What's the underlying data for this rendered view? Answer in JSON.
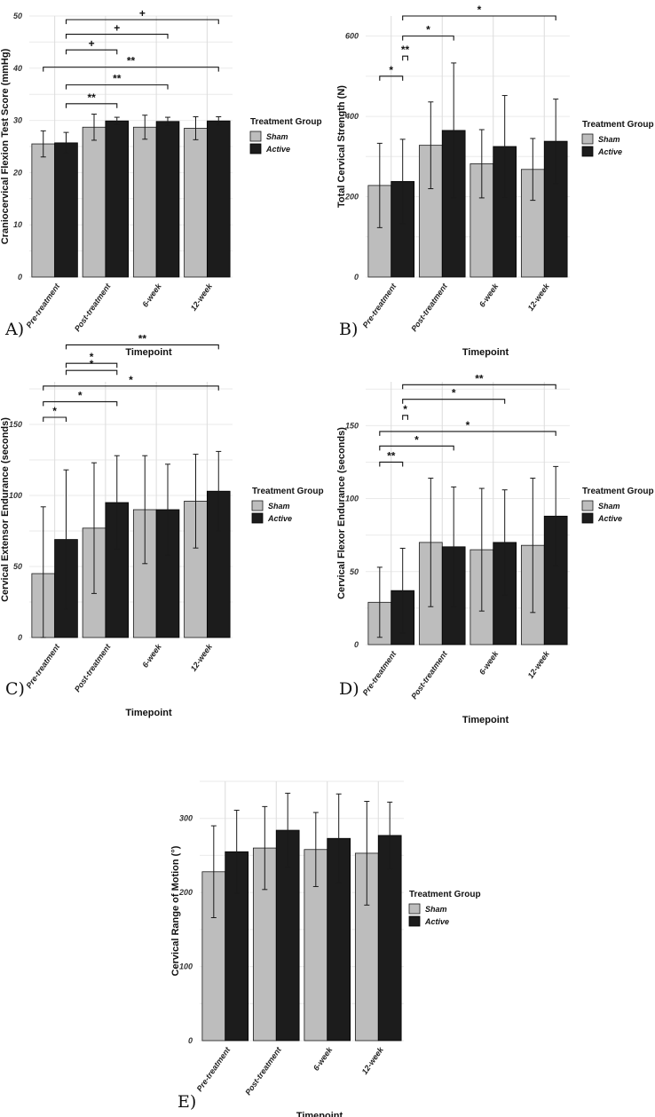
{
  "chart_data": [
    {
      "id": "A",
      "type": "bar",
      "panel_label": "A)",
      "ylabel": "Craniocervical Flexion Test Score (mmHg)",
      "xlabel": "Timepoint",
      "categories": [
        "Pre-treatment",
        "Post-treatment",
        "6-week",
        "12-week"
      ],
      "ylim": [
        0,
        50
      ],
      "yticks": [
        0,
        10,
        20,
        30,
        40,
        50
      ],
      "legend": {
        "title": "Treatment Group",
        "items": [
          "Sham",
          "Active"
        ],
        "position": "right"
      },
      "series": [
        {
          "name": "Sham",
          "values": [
            25.5,
            28.7,
            28.7,
            28.5
          ],
          "error": [
            2.5,
            2.5,
            2.3,
            2.2
          ]
        },
        {
          "name": "Active",
          "values": [
            25.7,
            29.9,
            29.8,
            29.9
          ],
          "error": [
            2.0,
            0.7,
            0.8,
            0.8
          ]
        }
      ],
      "significance": [
        {
          "from": 0,
          "to": 1,
          "label": "**",
          "y": 33.2
        },
        {
          "from": 0,
          "to": 2,
          "label": "**",
          "y": 36.8
        },
        {
          "from": -1,
          "to": 3,
          "label": "**",
          "y": 40.2
        },
        {
          "from": 0,
          "to": 1,
          "label": "+",
          "y": 43.5
        },
        {
          "from": 0,
          "to": 2,
          "label": "+",
          "y": 46.5
        },
        {
          "from": 0,
          "to": 3,
          "label": "+",
          "y": 49.3
        }
      ]
    },
    {
      "id": "B",
      "type": "bar",
      "panel_label": "B)",
      "ylabel": "Total Cervical Strength (N)",
      "xlabel": "Timepoint",
      "categories": [
        "Pre-treatment",
        "Post-treatment",
        "6-week",
        "12-week"
      ],
      "ylim": [
        0,
        650
      ],
      "yticks": [
        0,
        200,
        400,
        600
      ],
      "legend": {
        "title": "Treatment Group",
        "items": [
          "Sham",
          "Active"
        ],
        "position": "right"
      },
      "series": [
        {
          "name": "Sham",
          "values": [
            228,
            328,
            282,
            268
          ],
          "error": [
            105,
            108,
            85,
            77
          ]
        },
        {
          "name": "Active",
          "values": [
            238,
            365,
            325,
            338
          ],
          "error": [
            105,
            168,
            127,
            105
          ]
        }
      ],
      "significance": [
        {
          "from": -1,
          "to": 0,
          "label": "*",
          "y": 500
        },
        {
          "from": 0,
          "to": 0,
          "label": "**",
          "y": 550
        },
        {
          "from": 0,
          "to": 1,
          "label": "*",
          "y": 600
        },
        {
          "from": 0,
          "to": 3,
          "label": "*",
          "y": 650
        }
      ]
    },
    {
      "id": "C",
      "type": "bar",
      "panel_label": "C)",
      "ylabel": "Cervical Extensor Endurance (seconds)",
      "xlabel": "Timepoint",
      "categories": [
        "Pre-treatment",
        "Post-treatment",
        "6-week",
        "12-week"
      ],
      "ylim": [
        0,
        180
      ],
      "yticks": [
        0,
        50,
        100,
        150
      ],
      "legend": {
        "title": "Treatment Group",
        "items": [
          "Sham",
          "Active"
        ],
        "position": "right"
      },
      "series": [
        {
          "name": "Sham",
          "values": [
            45,
            77,
            90,
            96
          ],
          "error": [
            47,
            46,
            38,
            33
          ]
        },
        {
          "name": "Active",
          "values": [
            69,
            95,
            90,
            103
          ],
          "error": [
            49,
            33,
            32,
            28
          ]
        }
      ],
      "significance": [
        {
          "from": -1,
          "to": 0,
          "label": "*",
          "y": 155
        },
        {
          "from": -1,
          "to": 1,
          "label": "*",
          "y": 166
        },
        {
          "from": -1,
          "to": 3,
          "label": "*",
          "y": 177
        },
        {
          "from": 0,
          "to": 1,
          "label": "*",
          "y": 188
        },
        {
          "from": 0,
          "to": 1,
          "label": "*",
          "y": 193
        },
        {
          "from": 0,
          "to": 3,
          "label": "**",
          "y": 206
        }
      ]
    },
    {
      "id": "D",
      "type": "bar",
      "panel_label": "D)",
      "ylabel": "Cervical Flexor Endurance (seconds)",
      "xlabel": "Timepoint",
      "categories": [
        "Pre-treatment",
        "Post-treatment",
        "6-week",
        "12-week"
      ],
      "ylim": [
        0,
        180
      ],
      "yticks": [
        0,
        50,
        100,
        150
      ],
      "legend": {
        "title": "Treatment Group",
        "items": [
          "Sham",
          "Active"
        ],
        "position": "right"
      },
      "series": [
        {
          "name": "Sham",
          "values": [
            29,
            70,
            65,
            68
          ],
          "error": [
            24,
            44,
            42,
            46
          ]
        },
        {
          "name": "Active",
          "values": [
            37,
            67,
            70,
            88
          ],
          "error": [
            29,
            41,
            36,
            34
          ]
        }
      ],
      "significance": [
        {
          "from": -1,
          "to": 0,
          "label": "**",
          "y": 125
        },
        {
          "from": -1,
          "to": 1,
          "label": "*",
          "y": 136
        },
        {
          "from": -1,
          "to": 3,
          "label": "*",
          "y": 146
        },
        {
          "from": 0,
          "to": 0,
          "label": "*",
          "y": 157
        },
        {
          "from": 0,
          "to": 2,
          "label": "*",
          "y": 168
        },
        {
          "from": 0,
          "to": 3,
          "label": "**",
          "y": 178
        }
      ]
    },
    {
      "id": "E",
      "type": "bar",
      "panel_label": "E)",
      "ylabel": "Cervical Range of Motion (°)",
      "xlabel": "Timepoint",
      "categories": [
        "Pre-treatment",
        "Post-treatment",
        "6-week",
        "12-week"
      ],
      "ylim": [
        0,
        350
      ],
      "yticks": [
        0,
        100,
        200,
        300
      ],
      "legend": {
        "title": "Treatment Group",
        "items": [
          "Sham",
          "Active"
        ],
        "position": "right"
      },
      "series": [
        {
          "name": "Sham",
          "values": [
            228,
            260,
            258,
            253
          ],
          "error": [
            62,
            56,
            50,
            70
          ]
        },
        {
          "name": "Active",
          "values": [
            255,
            284,
            273,
            277
          ],
          "error": [
            56,
            50,
            60,
            45
          ]
        }
      ],
      "significance": []
    }
  ]
}
